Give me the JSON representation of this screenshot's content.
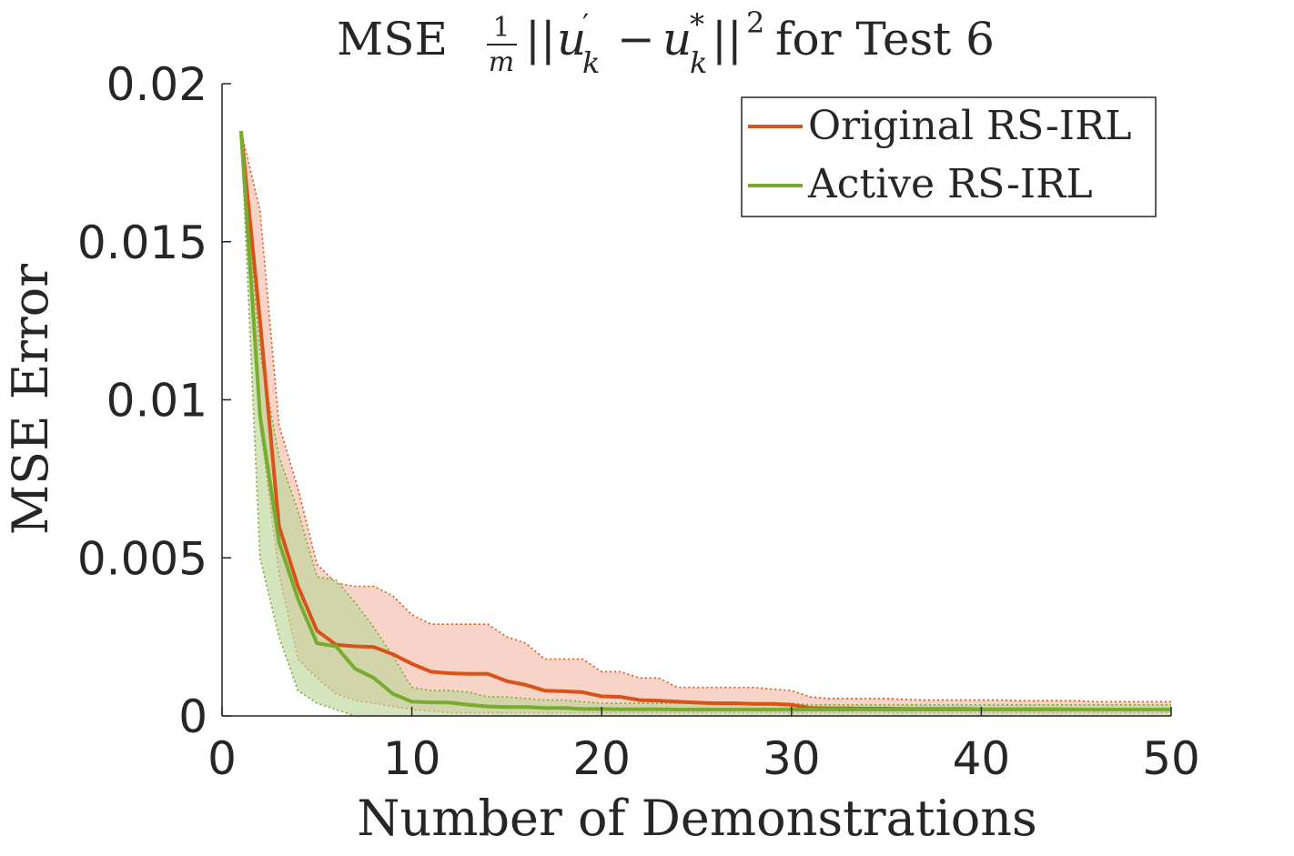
{
  "chart_data": {
    "type": "line",
    "title": {
      "prefix": "MSE",
      "frac_num": "1",
      "frac_den": "m",
      "bars_open": "||",
      "u1": "u",
      "u1_sup": "′",
      "u1_sub": "k",
      "minus": "−",
      "u2": "u",
      "u2_sup": "*",
      "u2_sub": "k",
      "bars_close": "||",
      "power": "2",
      "suffix": "for Test 6"
    },
    "xlabel": "Number of Demonstrations",
    "ylabel": "MSE Error",
    "xlim": [
      0,
      50
    ],
    "ylim": [
      0,
      0.02
    ],
    "xticks": [
      0,
      10,
      20,
      30,
      40,
      50
    ],
    "xtick_labels": [
      "0",
      "10",
      "20",
      "30",
      "40",
      "50"
    ],
    "yticks": [
      0,
      0.005,
      0.01,
      0.015,
      0.02
    ],
    "ytick_labels": [
      "0",
      "0.005",
      "0.01",
      "0.015",
      "0.02"
    ],
    "grid": false,
    "legend_position": "top-right",
    "series": [
      {
        "name": "Original RS-IRL",
        "color": "#d95319",
        "band_color": "#f4b6a3",
        "x": [
          1,
          2,
          3,
          4,
          5,
          6,
          7,
          8,
          9,
          10,
          11,
          12,
          13,
          14,
          15,
          16,
          17,
          18,
          19,
          20,
          21,
          22,
          23,
          24,
          25,
          26,
          27,
          28,
          29,
          30,
          31,
          32,
          33,
          34,
          35,
          36,
          37,
          38,
          39,
          40,
          41,
          42,
          43,
          44,
          45,
          46,
          47,
          48,
          49,
          50
        ],
        "mean": [
          0.0185,
          0.0125,
          0.006,
          0.0041,
          0.0027,
          0.00225,
          0.0022,
          0.00218,
          0.00195,
          0.00165,
          0.0014,
          0.00135,
          0.00133,
          0.00133,
          0.0011,
          0.00098,
          0.0008,
          0.00078,
          0.00075,
          0.00062,
          0.0006,
          0.0005,
          0.00048,
          0.00045,
          0.00042,
          0.0004,
          0.0004,
          0.00038,
          0.00038,
          0.00035,
          0.00025,
          0.00024,
          0.00024,
          0.00023,
          0.00023,
          0.00022,
          0.00022,
          0.00022,
          0.00022,
          0.00021,
          0.00021,
          0.00021,
          0.00021,
          0.00021,
          0.0002,
          0.0002,
          0.0002,
          0.0002,
          0.0002,
          0.0002
        ],
        "upper": [
          0.0185,
          0.016,
          0.0092,
          0.0072,
          0.0048,
          0.0042,
          0.0041,
          0.0041,
          0.0038,
          0.0032,
          0.0029,
          0.0029,
          0.0029,
          0.0029,
          0.0025,
          0.0023,
          0.0018,
          0.0018,
          0.0018,
          0.0014,
          0.0014,
          0.0012,
          0.0012,
          0.0009,
          0.0009,
          0.0009,
          0.0009,
          0.0009,
          0.00085,
          0.0008,
          0.0006,
          0.00055,
          0.00055,
          0.00055,
          0.00055,
          0.00052,
          0.0005,
          0.0005,
          0.0005,
          0.0005,
          0.0005,
          0.00048,
          0.00048,
          0.00048,
          0.00048,
          0.00045,
          0.00045,
          0.00045,
          0.00045,
          0.00045
        ],
        "lower": [
          0.0185,
          0.0092,
          0.0045,
          0.0018,
          0.0012,
          0.0007,
          0.0005,
          0.0004,
          0.0003,
          0.0002,
          0.00015,
          0.0001,
          0.0001,
          0.0001,
          0.0001,
          0.0001,
          0.0001,
          0.0001,
          0.0001,
          0.0001,
          0.0001,
          0.0001,
          0.0001,
          0.0001,
          0.0001,
          0.0001,
          0.0001,
          0.0001,
          0.0001,
          0.0001,
          0.0001,
          0.0001,
          0.0001,
          0.0001,
          0.0001,
          0.0001,
          0.0001,
          0.0001,
          0.0001,
          0.0001,
          0.0001,
          0.0001,
          0.0001,
          0.0001,
          0.0001,
          0.0001,
          0.0001,
          0.0001,
          0.0001,
          0.0001
        ]
      },
      {
        "name": "Active RS-IRL",
        "color": "#77ac30",
        "band_color": "#bdd59a",
        "x": [
          1,
          2,
          3,
          4,
          5,
          6,
          7,
          8,
          9,
          10,
          11,
          12,
          13,
          14,
          15,
          16,
          17,
          18,
          19,
          20,
          21,
          22,
          23,
          24,
          25,
          26,
          27,
          28,
          29,
          30,
          31,
          32,
          33,
          34,
          35,
          36,
          37,
          38,
          39,
          40,
          41,
          42,
          43,
          44,
          45,
          46,
          47,
          48,
          49,
          50
        ],
        "mean": [
          0.0185,
          0.0095,
          0.0055,
          0.0037,
          0.0023,
          0.0022,
          0.0015,
          0.0012,
          0.0007,
          0.00045,
          0.00043,
          0.00042,
          0.00035,
          0.0003,
          0.00028,
          0.00028,
          0.00025,
          0.00025,
          0.00022,
          0.00022,
          0.00021,
          0.00021,
          0.00021,
          0.0002,
          0.0002,
          0.0002,
          0.0002,
          0.0002,
          0.0002,
          0.0002,
          0.0002,
          0.0002,
          0.0002,
          0.0002,
          0.0002,
          0.0002,
          0.0002,
          0.0002,
          0.0002,
          0.0002,
          0.0002,
          0.0002,
          0.0002,
          0.0002,
          0.0002,
          0.0002,
          0.0002,
          0.0002,
          0.0002,
          0.0002
        ],
        "upper": [
          0.0185,
          0.0115,
          0.0082,
          0.0065,
          0.0044,
          0.0043,
          0.0036,
          0.0028,
          0.0019,
          0.0009,
          0.0008,
          0.0008,
          0.00075,
          0.0006,
          0.0006,
          0.00055,
          0.0005,
          0.0005,
          0.00045,
          0.0004,
          0.0004,
          0.0004,
          0.0004,
          0.0004,
          0.0004,
          0.0004,
          0.0004,
          0.0004,
          0.0004,
          0.0004,
          0.00035,
          0.00035,
          0.00035,
          0.00035,
          0.00035,
          0.00035,
          0.00035,
          0.00035,
          0.00035,
          0.00035,
          0.00035,
          0.00035,
          0.00035,
          0.00035,
          0.00035,
          0.00035,
          0.00035,
          0.00035,
          0.00035,
          0.00035
        ],
        "lower": [
          0.0185,
          0.005,
          0.0025,
          0.0008,
          0.0004,
          0.0002,
          0,
          0,
          0,
          0,
          0,
          0,
          0,
          0,
          0,
          0,
          0,
          0,
          0,
          0,
          0,
          0,
          0,
          0,
          0,
          0,
          0,
          0,
          0,
          0,
          0,
          0,
          0,
          0,
          0,
          0,
          0,
          0,
          0,
          0,
          0,
          0,
          0,
          0,
          0,
          0,
          0,
          0,
          0,
          0
        ]
      }
    ]
  }
}
